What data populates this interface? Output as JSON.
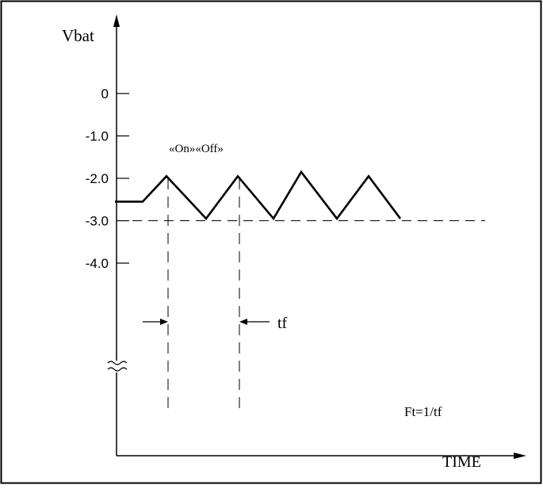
{
  "chart_data": {
    "type": "line",
    "ylabel": "Vbat",
    "xlabel": "TIME",
    "y_ticks": [
      "0",
      "-1.0",
      "-2.0",
      "-3.0",
      "-4.0"
    ],
    "y_tick_values": [
      0,
      -1.0,
      -2.0,
      -3.0,
      -4.0
    ],
    "reference_line": {
      "y": -3.0,
      "style": "dashed"
    },
    "series": [
      {
        "values_x": [
          0,
          0.35,
          0.65,
          1.15,
          1.55,
          2.0,
          2.35,
          2.8,
          3.2,
          3.6
        ],
        "values_y": [
          -2.55,
          -2.55,
          -1.95,
          -2.95,
          -1.95,
          -2.95,
          -1.85,
          -2.95,
          -1.95,
          -2.95
        ]
      }
    ],
    "annotations": {
      "on_off": "«On»«Off»",
      "tf": "tf",
      "formula": "Ft=1/tf"
    },
    "axis_break": true,
    "grid": false
  }
}
